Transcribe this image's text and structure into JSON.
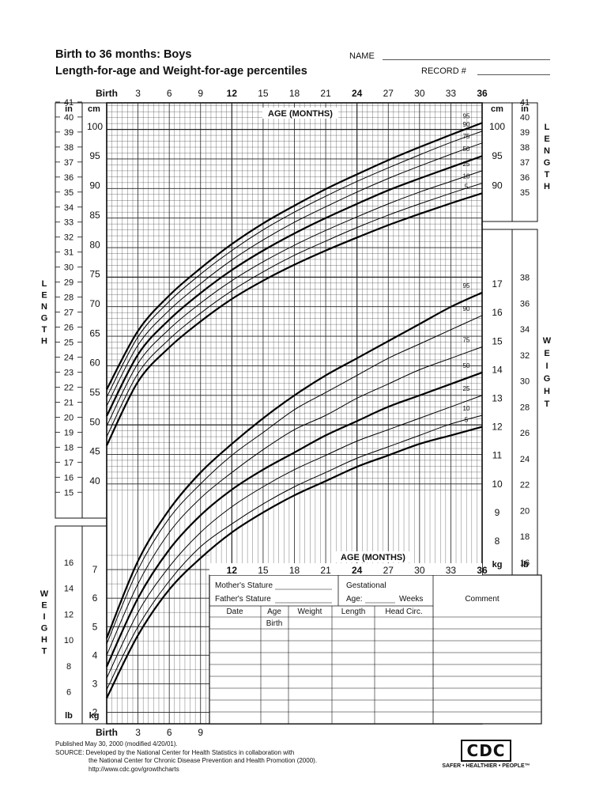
{
  "title_line1": "Birth to 36 months: Boys",
  "title_line2": "Length-for-age and Weight-for-age percentiles",
  "name_label": "NAME",
  "record_label": "RECORD #",
  "top_age_ticks": [
    "Birth",
    "3",
    "6",
    "9",
    "12",
    "15",
    "18",
    "21",
    "24",
    "27",
    "30",
    "33",
    "36"
  ],
  "bottom_age_ticks": [
    "Birth",
    "3",
    "6",
    "9"
  ],
  "table_age_ticks": [
    "12",
    "15",
    "18",
    "21",
    "24",
    "27",
    "30",
    "33",
    "36"
  ],
  "age_axis_label": "AGE (MONTHS)",
  "units": {
    "in": "in",
    "cm": "cm",
    "kg": "kg",
    "lb": "lb"
  },
  "side_labels": {
    "length": "LENGTH",
    "weight": "WEIGHT"
  },
  "table": {
    "mothers_stature": "Mother's Stature",
    "fathers_stature": "Father's Stature",
    "gestational": "Gestational",
    "age_weeks": "Age:",
    "weeks": "Weeks",
    "comment": "Comment",
    "columns": [
      "Date",
      "Age",
      "Weight",
      "Length",
      "Head Circ."
    ],
    "first_row_age": "Birth"
  },
  "footer": {
    "published": "Published May 30, 2000 (modified 4/20/01).",
    "source1": "SOURCE: Developed by the National Center for Health Statistics in collaboration with",
    "source2": "the National Center for Chronic Disease Prevention and Health Promotion (2000).",
    "url": "http://www.cdc.gov/growthcharts"
  },
  "logo": {
    "text": "CDC",
    "tagline": "SAFER • HEALTHIER • PEOPLE™"
  },
  "chart_data": [
    {
      "type": "line",
      "x": [
        0,
        3,
        6,
        9,
        12,
        15,
        18,
        21,
        24,
        27,
        30,
        33,
        36
      ],
      "xlabel": "AGE (MONTHS)",
      "ylabel": "LENGTH",
      "xlim": [
        0,
        36
      ],
      "ylim_cm": [
        38.5,
        104
      ],
      "series": [
        {
          "name": "5",
          "values": [
            46.0,
            56.8,
            62.6,
            67.0,
            70.8,
            73.9,
            76.6,
            79.0,
            81.2,
            83.3,
            85.2,
            87.0,
            88.7
          ]
        },
        {
          "name": "10",
          "values": [
            47.5,
            58.2,
            64.0,
            68.4,
            72.2,
            75.4,
            78.2,
            80.6,
            82.9,
            85.0,
            86.9,
            88.7,
            90.4
          ]
        },
        {
          "name": "25",
          "values": [
            49.3,
            59.9,
            65.7,
            70.1,
            73.9,
            77.1,
            79.9,
            82.4,
            84.7,
            86.9,
            88.9,
            90.7,
            92.5
          ]
        },
        {
          "name": "50",
          "values": [
            51.0,
            61.4,
            67.3,
            71.8,
            75.7,
            79.0,
            81.9,
            84.5,
            86.9,
            89.2,
            91.2,
            93.1,
            95.0
          ]
        },
        {
          "name": "75",
          "values": [
            52.7,
            63.0,
            68.9,
            73.4,
            77.4,
            80.8,
            83.8,
            86.4,
            88.9,
            91.2,
            93.3,
            95.3,
            97.2
          ]
        },
        {
          "name": "90",
          "values": [
            54.2,
            64.4,
            70.4,
            75.0,
            79.0,
            82.5,
            85.5,
            88.2,
            90.7,
            93.0,
            95.2,
            97.3,
            99.2
          ]
        },
        {
          "name": "95",
          "values": [
            55.5,
            65.4,
            71.4,
            76.0,
            80.1,
            83.6,
            86.6,
            89.4,
            91.9,
            94.3,
            96.5,
            98.6,
            100.6
          ]
        }
      ]
    },
    {
      "type": "line",
      "x": [
        0,
        3,
        6,
        9,
        12,
        15,
        18,
        21,
        24,
        27,
        30,
        33,
        36
      ],
      "xlabel": "AGE (MONTHS)",
      "ylabel": "WEIGHT",
      "xlim": [
        0,
        36
      ],
      "ylim_kg": [
        1.6,
        18
      ],
      "series": [
        {
          "name": "5",
          "values": [
            2.5,
            4.7,
            6.3,
            7.4,
            8.3,
            9.0,
            9.6,
            10.1,
            10.6,
            11.0,
            11.4,
            11.7,
            12.0
          ]
        },
        {
          "name": "10",
          "values": [
            2.8,
            5.0,
            6.6,
            7.8,
            8.6,
            9.3,
            9.9,
            10.4,
            10.9,
            11.3,
            11.7,
            12.1,
            12.4
          ]
        },
        {
          "name": "25",
          "values": [
            3.2,
            5.5,
            7.1,
            8.3,
            9.2,
            9.9,
            10.5,
            11.0,
            11.5,
            11.9,
            12.3,
            12.7,
            13.1
          ]
        },
        {
          "name": "50",
          "values": [
            3.6,
            6.0,
            7.7,
            8.9,
            9.8,
            10.5,
            11.1,
            11.7,
            12.2,
            12.7,
            13.1,
            13.5,
            13.9
          ]
        },
        {
          "name": "75",
          "values": [
            4.0,
            6.5,
            8.3,
            9.5,
            10.4,
            11.2,
            11.9,
            12.4,
            13.0,
            13.5,
            14.0,
            14.4,
            14.8
          ]
        },
        {
          "name": "90",
          "values": [
            4.4,
            7.0,
            8.8,
            10.0,
            11.0,
            11.8,
            12.6,
            13.2,
            13.8,
            14.4,
            14.9,
            15.4,
            15.9
          ]
        },
        {
          "name": "95",
          "values": [
            4.6,
            7.3,
            9.1,
            10.4,
            11.4,
            12.3,
            13.1,
            13.8,
            14.4,
            15.0,
            15.6,
            16.2,
            16.7
          ]
        }
      ]
    }
  ]
}
